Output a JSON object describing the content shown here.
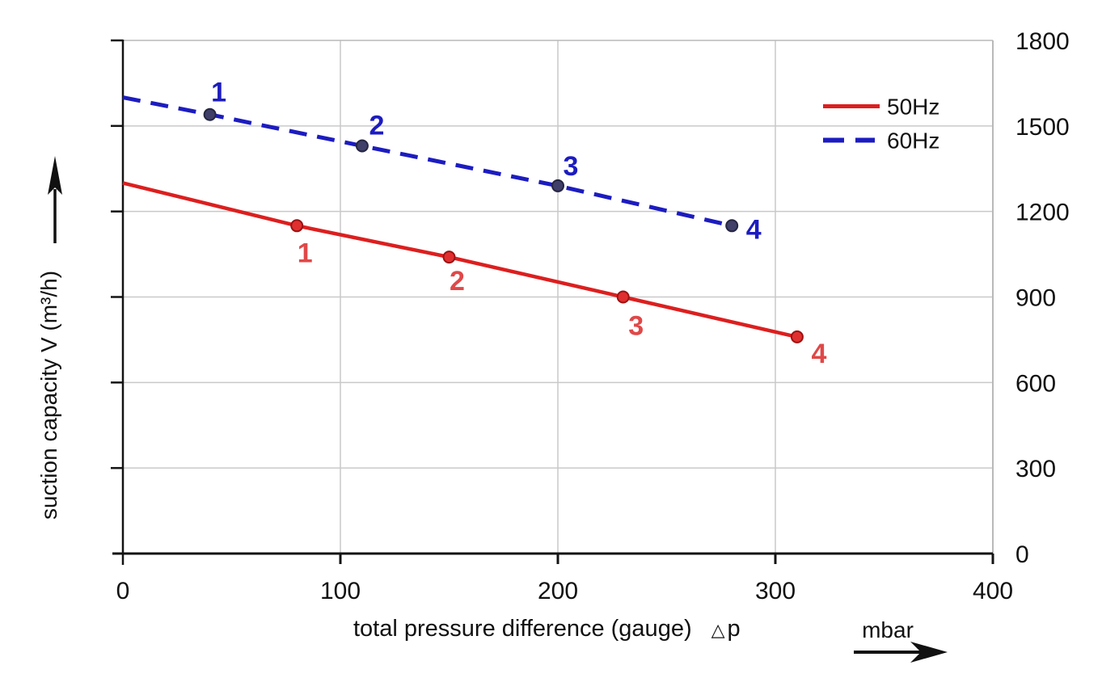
{
  "chart_data": {
    "type": "line",
    "title": "",
    "xlabel": "total pressure difference (gauge)",
    "xlabel_symbol": "△p",
    "x_unit": "mbar",
    "ylabel": "suction capacity V (m³/h)",
    "xlim": [
      0,
      400
    ],
    "ylim": [
      0,
      1800
    ],
    "x_ticks": [
      0,
      100,
      200,
      300,
      400
    ],
    "y_ticks": [
      0,
      300,
      600,
      900,
      1200,
      1500,
      1800
    ],
    "y_tick_side": "right",
    "grid": true,
    "grid_color": "#c9c9c9",
    "border_color": "#b9b9b9",
    "axis_color": "#141414",
    "text_color": "#111111",
    "legend_position": "top-right-inside",
    "legend": {
      "items": [
        {
          "label": "50Hz",
          "style": "solid",
          "color": "#dc1f1f"
        },
        {
          "label": "60Hz",
          "style": "dashed",
          "color": "#1c1cc0"
        }
      ]
    },
    "series": [
      {
        "name": "50Hz",
        "color": "#dc1f1f",
        "style": "solid",
        "marker_fill": "#e02f2f",
        "marker_stroke": "#9c1212",
        "label_color": "#e04848",
        "points": [
          {
            "x": 0,
            "y": 1300
          },
          {
            "x": 80,
            "y": 1150,
            "label": "1",
            "label_dx": 10,
            "label_dy": 33
          },
          {
            "x": 150,
            "y": 1040,
            "label": "2",
            "label_dx": 10,
            "label_dy": 29
          },
          {
            "x": 230,
            "y": 900,
            "label": "3",
            "label_dx": 16,
            "label_dy": 35
          },
          {
            "x": 310,
            "y": 760,
            "label": "4",
            "label_dx": 27,
            "label_dy": 20
          }
        ]
      },
      {
        "name": "60Hz",
        "color": "#1c1cc0",
        "style": "dashed",
        "marker_fill": "#3f3f69",
        "marker_stroke": "#252542",
        "label_color": "#1c1cc0",
        "points": [
          {
            "x": 0,
            "y": 1600
          },
          {
            "x": 40,
            "y": 1540,
            "label": "1",
            "label_dx": 11,
            "label_dy": -28
          },
          {
            "x": 110,
            "y": 1430,
            "label": "2",
            "label_dx": 18,
            "label_dy": -26
          },
          {
            "x": 200,
            "y": 1290,
            "label": "3",
            "label_dx": 16,
            "label_dy": -25
          },
          {
            "x": 280,
            "y": 1150,
            "label": "4",
            "label_dx": 27,
            "label_dy": 4
          }
        ]
      }
    ]
  }
}
